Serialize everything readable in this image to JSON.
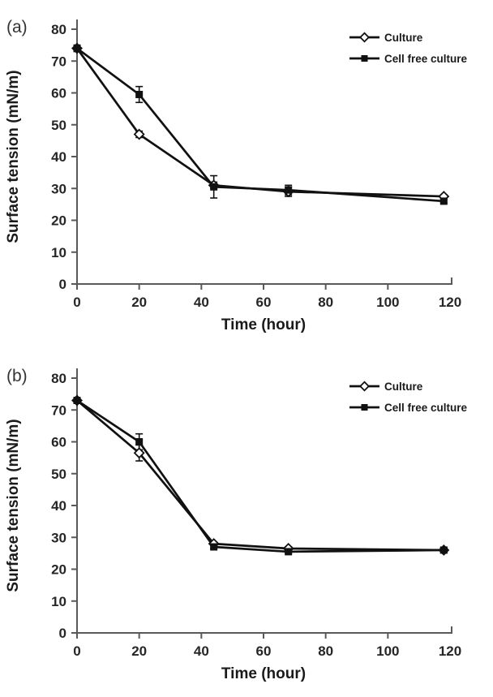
{
  "figure": {
    "background": "#ffffff",
    "panel_count": 2
  },
  "colors": {
    "data_line": "#111111",
    "axis_line": "#595959",
    "tick_text": "#262626",
    "label_text": "#1a1a1a",
    "panel_label_text": "#333333",
    "marker_fill": "#111111",
    "open_marker_fill": "#ffffff",
    "background": "#ffffff"
  },
  "chart_data": [
    {
      "type": "line",
      "panel_label": "(a)",
      "title": "",
      "xlabel": "Time (hour)",
      "ylabel": "Surface tension (mN/m)",
      "xlim": [
        0,
        120
      ],
      "ylim": [
        0,
        80
      ],
      "xticks": [
        0,
        20,
        40,
        60,
        80,
        100,
        120
      ],
      "yticks": [
        0,
        10,
        20,
        30,
        40,
        50,
        60,
        70,
        80
      ],
      "grid": false,
      "legend_position": "top-right",
      "x": [
        0,
        20,
        44,
        68,
        118
      ],
      "series": [
        {
          "name": "Culture",
          "marker": "open-diamond",
          "values": [
            74,
            47,
            31,
            29,
            27.5
          ],
          "errors": [
            1,
            1,
            1,
            1.5,
            0.5
          ]
        },
        {
          "name": "Cell free culture",
          "marker": "filled-square",
          "values": [
            74,
            59.5,
            30.5,
            29.5,
            26
          ],
          "errors": [
            1,
            2.5,
            3.5,
            1.5,
            0.5
          ]
        }
      ]
    },
    {
      "type": "line",
      "panel_label": "(b)",
      "title": "",
      "xlabel": "Time (hour)",
      "ylabel": "Surface tension (mN/m)",
      "xlim": [
        0,
        120
      ],
      "ylim": [
        0,
        80
      ],
      "xticks": [
        0,
        20,
        40,
        60,
        80,
        100,
        120
      ],
      "yticks": [
        0,
        10,
        20,
        30,
        40,
        50,
        60,
        70,
        80
      ],
      "grid": false,
      "legend_position": "top-right",
      "x": [
        0,
        20,
        44,
        68,
        118
      ],
      "series": [
        {
          "name": "Culture",
          "marker": "open-diamond",
          "values": [
            73,
            56.5,
            28,
            26.5,
            26
          ],
          "errors": [
            0.5,
            2.5,
            0.5,
            0.5,
            0.8
          ]
        },
        {
          "name": "Cell free culture",
          "marker": "filled-square",
          "values": [
            73,
            60,
            27,
            25.5,
            26
          ],
          "errors": [
            0.5,
            2.5,
            0.5,
            0.5,
            0.8
          ]
        }
      ]
    }
  ]
}
